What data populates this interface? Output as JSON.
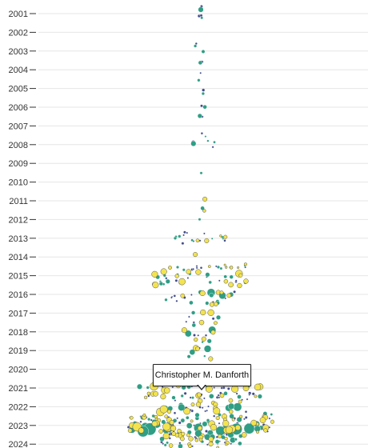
{
  "chart_data": {
    "type": "scatter",
    "layout": "beeswarm",
    "title": "",
    "xlabel": "",
    "ylabel": "",
    "y_ticks": [
      "2001",
      "2002",
      "2003",
      "2004",
      "2005",
      "2006",
      "2007",
      "2008",
      "2009",
      "2010",
      "2011",
      "2012",
      "2013",
      "2014",
      "2015",
      "2016",
      "2017",
      "2018",
      "2019",
      "2020",
      "2021",
      "2022",
      "2023",
      "2024"
    ],
    "ylim": [
      2000.6,
      2024.1
    ],
    "grid": true,
    "legend": "none",
    "colors": {
      "navy": "#3f4a8a",
      "teal": "#2f9e84",
      "yellow": "#f3e34f"
    },
    "series": [
      {
        "color": "navy",
        "points": [
          [
            2000.6,
            0.6
          ],
          [
            2001.2,
            0.7
          ],
          [
            2001.1,
            0.6
          ],
          [
            2002.5,
            0.5
          ],
          [
            2003.6,
            0.6
          ],
          [
            2004.1,
            0.4
          ],
          [
            2005.2,
            0.7
          ],
          [
            2006.0,
            0.6
          ],
          [
            2006.6,
            0.5
          ],
          [
            2007.4,
            0.5
          ],
          [
            2008.0,
            0.9
          ],
          [
            2009.4,
            0.5
          ],
          [
            2012.7,
            0.6
          ],
          [
            2013.2,
            0.6
          ],
          [
            2014.6,
            0.6
          ],
          [
            2015.2,
            0.6
          ],
          [
            2016.0,
            0.6
          ],
          [
            2016.3,
            0.6
          ],
          [
            2017.2,
            0.6
          ],
          [
            2017.5,
            0.5
          ],
          [
            2018.1,
            0.6
          ],
          [
            2018.3,
            0.5
          ],
          [
            2019.0,
            0.5
          ],
          [
            2020.2,
            0.6
          ],
          [
            2021.0,
            0.6
          ],
          [
            2021.3,
            0.7
          ],
          [
            2021.6,
            0.6
          ],
          [
            2022.1,
            0.8
          ],
          [
            2022.3,
            0.6
          ],
          [
            2022.6,
            0.6
          ],
          [
            2022.9,
            0.7
          ],
          [
            2023.0,
            0.6
          ],
          [
            2023.3,
            0.7
          ],
          [
            2023.5,
            0.8
          ],
          [
            2023.7,
            0.6
          ],
          [
            2023.9,
            0.6
          ],
          [
            2024.0,
            0.5
          ]
        ]
      },
      {
        "color": "teal",
        "points": [
          [
            2000.9,
            1.2
          ],
          [
            2001.3,
            0.6
          ],
          [
            2002.6,
            0.7
          ],
          [
            2003.1,
            0.8
          ],
          [
            2003.5,
            0.9
          ],
          [
            2004.5,
            0.7
          ],
          [
            2005.3,
            0.7
          ],
          [
            2006.1,
            0.9
          ],
          [
            2006.6,
            1.0
          ],
          [
            2007.7,
            0.5
          ],
          [
            2008.0,
            1.2
          ],
          [
            2009.5,
            0.6
          ],
          [
            2011.5,
            0.9
          ],
          [
            2012.0,
            0.6
          ],
          [
            2012.9,
            0.7
          ],
          [
            2013.1,
            0.7
          ],
          [
            2014.6,
            0.7
          ],
          [
            2015.0,
            1.0
          ],
          [
            2015.4,
            1.0
          ],
          [
            2016.0,
            1.8
          ],
          [
            2016.4,
            0.9
          ],
          [
            2017.1,
            1.0
          ],
          [
            2017.6,
            0.9
          ],
          [
            2018.0,
            1.7
          ],
          [
            2018.5,
            1.0
          ],
          [
            2019.0,
            1.6
          ],
          [
            2019.4,
            0.8
          ],
          [
            2020.3,
            0.9
          ],
          [
            2021.0,
            1.3
          ],
          [
            2021.4,
            1.1
          ],
          [
            2022.0,
            1.9
          ],
          [
            2022.5,
            1.1
          ],
          [
            2022.8,
            1.2
          ],
          [
            2023.0,
            2.2
          ],
          [
            2023.2,
            2.8
          ],
          [
            2023.5,
            1.6
          ],
          [
            2023.7,
            1.3
          ],
          [
            2024.0,
            1.1
          ]
        ]
      },
      {
        "color": "yellow",
        "points": [
          [
            2010.9,
            1.0
          ],
          [
            2011.6,
            0.7
          ],
          [
            2013.0,
            1.0
          ],
          [
            2014.0,
            1.0
          ],
          [
            2014.5,
            0.8
          ],
          [
            2014.9,
            1.6
          ],
          [
            2015.4,
            1.5
          ],
          [
            2016.0,
            1.2
          ],
          [
            2016.6,
            1.0
          ],
          [
            2017.0,
            1.4
          ],
          [
            2017.6,
            1.1
          ],
          [
            2018.0,
            1.2
          ],
          [
            2018.5,
            1.0
          ],
          [
            2019.0,
            1.3
          ],
          [
            2019.5,
            1.0
          ],
          [
            2020.4,
            1.2
          ],
          [
            2021.0,
            1.8
          ],
          [
            2021.4,
            1.3
          ],
          [
            2021.8,
            1.1
          ],
          [
            2022.2,
            1.8
          ],
          [
            2022.5,
            1.2
          ],
          [
            2022.8,
            1.3
          ],
          [
            2023.0,
            1.5
          ],
          [
            2023.2,
            2.0
          ],
          [
            2023.4,
            1.3
          ],
          [
            2023.6,
            1.4
          ],
          [
            2023.8,
            1.1
          ],
          [
            2024.1,
            1.0
          ]
        ]
      }
    ]
  },
  "tooltip": {
    "label": "Christopher M. Danforth"
  }
}
